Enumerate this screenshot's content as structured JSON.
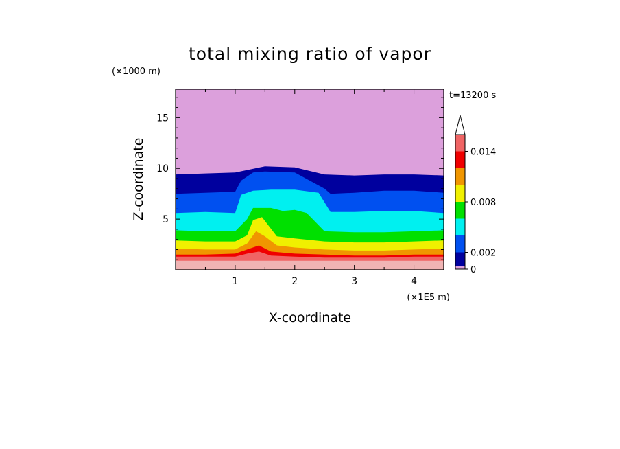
{
  "chart_data": {
    "type": "contour",
    "title": "total mixing ratio of vapor",
    "time_label": "t=13200 s",
    "xlabel": "X-coordinate",
    "ylabel": "Z-coordinate",
    "x_unit": "(×1E5 m)",
    "y_unit": "(×1000 m)",
    "xlim": [
      0,
      4.5
    ],
    "ylim": [
      0,
      17.8
    ],
    "x_ticks": [
      1,
      2,
      3,
      4
    ],
    "y_ticks": [
      5,
      10,
      15
    ],
    "levels": [
      0,
      0.001,
      0.002,
      0.004,
      0.006,
      0.008,
      0.01,
      0.012,
      0.014,
      0.016
    ],
    "level_colors": [
      "#dca0dc",
      "#00009e",
      "#0050f0",
      "#00f0f0",
      "#00e000",
      "#f0f000",
      "#f09600",
      "#f00000",
      "#f06464",
      "#f0b4b4"
    ],
    "colorbar_labels": [
      {
        "value": 0,
        "text": "0"
      },
      {
        "value": 0.002,
        "text": "0.002"
      },
      {
        "value": 0.008,
        "text": "0.008"
      },
      {
        "value": 0.014,
        "text": "0.014"
      }
    ],
    "colorbar_extend": "max",
    "contour_layers": [
      {
        "level": 0.001,
        "color": "#00009e",
        "x": [
          0,
          0.5,
          1,
          1.5,
          2,
          2.5,
          3,
          3.5,
          4,
          4.5
        ],
        "z": [
          9.4,
          9.5,
          9.6,
          10.2,
          10.1,
          9.4,
          9.3,
          9.4,
          9.4,
          9.3
        ]
      },
      {
        "level": 0.002,
        "color": "#0050f0",
        "x": [
          0,
          0.5,
          1,
          1.1,
          1.3,
          1.5,
          2,
          2.5,
          2.6,
          3,
          3.5,
          4,
          4.5
        ],
        "z": [
          7.5,
          7.6,
          7.7,
          8.8,
          9.6,
          9.7,
          9.6,
          8.0,
          7.5,
          7.6,
          7.8,
          7.8,
          7.6
        ]
      },
      {
        "level": 0.004,
        "color": "#00f0f0",
        "x": [
          0,
          0.5,
          1,
          1.1,
          1.3,
          1.6,
          2,
          2.4,
          2.6,
          3,
          3.5,
          4,
          4.5
        ],
        "z": [
          5.6,
          5.7,
          5.6,
          7.4,
          7.8,
          7.9,
          7.9,
          7.6,
          5.7,
          5.7,
          5.8,
          5.8,
          5.6
        ]
      },
      {
        "level": 0.006,
        "color": "#00e000",
        "x": [
          0,
          0.5,
          1,
          1.2,
          1.3,
          1.6,
          1.8,
          2.0,
          2.2,
          2.5,
          3,
          3.5,
          4,
          4.5
        ],
        "z": [
          3.9,
          3.8,
          3.8,
          5.0,
          6.1,
          6.1,
          5.8,
          5.9,
          5.6,
          3.8,
          3.7,
          3.7,
          3.8,
          3.9
        ]
      },
      {
        "level": 0.008,
        "color": "#f0f000",
        "x": [
          0,
          0.5,
          1,
          1.2,
          1.3,
          1.45,
          1.7,
          2,
          2.5,
          3,
          3.5,
          4,
          4.5
        ],
        "z": [
          2.9,
          2.8,
          2.8,
          3.4,
          4.9,
          5.2,
          3.3,
          3.1,
          2.8,
          2.7,
          2.7,
          2.8,
          2.9
        ]
      },
      {
        "level": 0.01,
        "color": "#f09600",
        "x": [
          0,
          0.5,
          1,
          1.2,
          1.35,
          1.5,
          1.7,
          2,
          2.5,
          3,
          3.5,
          4,
          4.5
        ],
        "z": [
          2.1,
          2.0,
          2.0,
          2.6,
          3.8,
          3.3,
          2.4,
          2.2,
          2.0,
          1.9,
          1.9,
          2.0,
          2.1
        ]
      },
      {
        "level": 0.012,
        "color": "#f00000",
        "x": [
          0,
          0.5,
          1,
          1.2,
          1.4,
          1.6,
          2,
          2.5,
          3,
          3.5,
          4,
          4.5
        ],
        "z": [
          1.5,
          1.5,
          1.6,
          2.0,
          2.4,
          1.8,
          1.6,
          1.5,
          1.4,
          1.4,
          1.5,
          1.5
        ]
      },
      {
        "level": 0.014,
        "color": "#f06464",
        "x": [
          0,
          0.5,
          1,
          1.2,
          1.4,
          1.6,
          2,
          2.5,
          3,
          3.5,
          4,
          4.5
        ],
        "z": [
          1.3,
          1.3,
          1.3,
          1.6,
          1.8,
          1.4,
          1.3,
          1.2,
          1.2,
          1.2,
          1.3,
          1.3
        ]
      },
      {
        "level": 0.016,
        "color": "#f0b4b4",
        "x": [
          0,
          4.5
        ],
        "z": [
          0.9,
          0.9
        ]
      }
    ]
  }
}
